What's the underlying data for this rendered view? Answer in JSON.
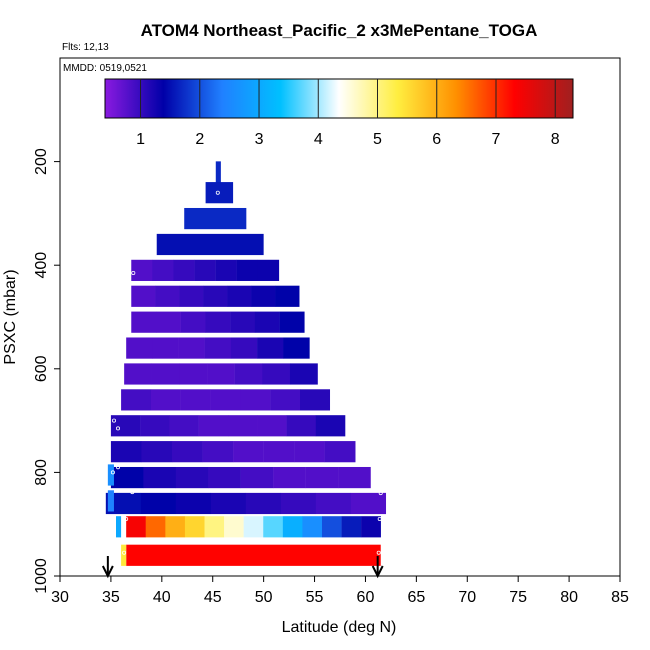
{
  "chart_data": {
    "type": "heatmap",
    "title": "ATOM4 Northeast_Pacific_2 x3MePentane_TOGA",
    "info_lines": [
      "Flts: 12,13",
      "MMDD: 0519,0521"
    ],
    "xlabel": "Latitude (deg N)",
    "ylabel": "PSXC (mbar)",
    "xlim": [
      30,
      85
    ],
    "ylim": [
      1000,
      0
    ],
    "x_ticks": [
      "30",
      "35",
      "40",
      "45",
      "50",
      "55",
      "60",
      "65",
      "70",
      "75",
      "80",
      "85"
    ],
    "y_ticks": [
      "200",
      "400",
      "600",
      "800",
      "1000"
    ],
    "grid": false,
    "colorbar": {
      "placement": "top",
      "ticks": [
        "1",
        "2",
        "3",
        "4",
        "5",
        "6",
        "7",
        "8"
      ],
      "range": [
        0.4,
        8.3
      ],
      "colors": [
        "#8a1ae0",
        "#0000a8",
        "#2080ff",
        "#00c0ff",
        "#ffffff",
        "#ffee40",
        "#ff9000",
        "#ff0000",
        "#a02020"
      ]
    },
    "flight_lat_range": [
      34.7,
      61.2
    ],
    "bands": [
      {
        "p": 220,
        "x0": 45.3,
        "x1": 45.8,
        "value": 1.7
      },
      {
        "p": 260,
        "x0": 44.3,
        "x1": 47.0,
        "value": 1.6
      },
      {
        "p": 310,
        "x0": 42.2,
        "x1": 48.3,
        "value": 1.7
      },
      {
        "p": 360,
        "x0": 39.5,
        "x1": 50.0,
        "value": 1.5
      },
      {
        "p": 410,
        "x0": 37.0,
        "x1": 51.5,
        "values": [
          0.8,
          0.9,
          1.0,
          1.1,
          1.2,
          1.3,
          1.3
        ]
      },
      {
        "p": 460,
        "x0": 37.0,
        "x1": 53.5,
        "values": [
          0.8,
          0.9,
          1.0,
          1.1,
          1.2,
          1.3,
          1.4
        ]
      },
      {
        "p": 510,
        "x0": 37.0,
        "x1": 54.0,
        "values": [
          0.8,
          0.8,
          0.9,
          1.0,
          1.1,
          1.2,
          1.4
        ]
      },
      {
        "p": 560,
        "x0": 36.5,
        "x1": 54.5,
        "values": [
          0.8,
          0.8,
          0.8,
          0.9,
          1.0,
          1.2,
          1.4
        ]
      },
      {
        "p": 610,
        "x0": 36.3,
        "x1": 55.3,
        "values": [
          0.8,
          0.8,
          0.8,
          0.8,
          0.9,
          1.0,
          1.2
        ]
      },
      {
        "p": 660,
        "x0": 36.0,
        "x1": 56.5,
        "values": [
          0.9,
          0.8,
          0.8,
          0.8,
          0.8,
          0.9,
          1.1
        ]
      },
      {
        "p": 710,
        "x0": 35.0,
        "x1": 58.0,
        "values": [
          1.1,
          1.0,
          0.9,
          0.8,
          0.8,
          0.8,
          1.0,
          1.2
        ]
      },
      {
        "p": 760,
        "x0": 35.0,
        "x1": 59.0,
        "values": [
          1.2,
          1.1,
          1.0,
          0.9,
          0.8,
          0.8,
          0.8,
          0.9
        ]
      },
      {
        "p": 810,
        "x0": 35.0,
        "x1": 60.5,
        "values": [
          1.4,
          1.2,
          1.1,
          1.0,
          0.9,
          0.8,
          0.8,
          0.8
        ]
      },
      {
        "p": 860,
        "x0": 34.5,
        "x1": 62.0,
        "values": [
          1.5,
          1.4,
          1.3,
          1.2,
          1.1,
          1.0,
          0.9,
          0.8
        ]
      },
      {
        "p": 905,
        "x0": 36.5,
        "x1": 61.5,
        "values": [
          7.4,
          6.6,
          6.0,
          5.6,
          5.0,
          4.6,
          4.2,
          3.7,
          3.1,
          2.6,
          2.0,
          1.6,
          1.3
        ]
      },
      {
        "p": 960,
        "x0": 36.5,
        "x1": 61.5,
        "value": 7.3
      }
    ],
    "extra_cells": [
      {
        "p": 805,
        "x0": 34.7,
        "x1": 35.3,
        "value": 2.6
      },
      {
        "p": 855,
        "x0": 34.7,
        "x1": 35.3,
        "value": 2.4
      },
      {
        "p": 905,
        "x0": 35.5,
        "x1": 36.0,
        "value": 3.0
      },
      {
        "p": 960,
        "x0": 36.0,
        "x1": 36.5,
        "value": 5.4
      }
    ],
    "sample_points": [
      {
        "lat": 45.5,
        "p": 260
      },
      {
        "lat": 37.2,
        "p": 415
      },
      {
        "lat": 35.3,
        "p": 700
      },
      {
        "lat": 35.7,
        "p": 715
      },
      {
        "lat": 35.7,
        "p": 790
      },
      {
        "lat": 35.2,
        "p": 800
      },
      {
        "lat": 37.1,
        "p": 838
      },
      {
        "lat": 61.5,
        "p": 840
      },
      {
        "lat": 36.5,
        "p": 890
      },
      {
        "lat": 61.4,
        "p": 890
      },
      {
        "lat": 36.3,
        "p": 955
      },
      {
        "lat": 61.3,
        "p": 955
      }
    ]
  }
}
